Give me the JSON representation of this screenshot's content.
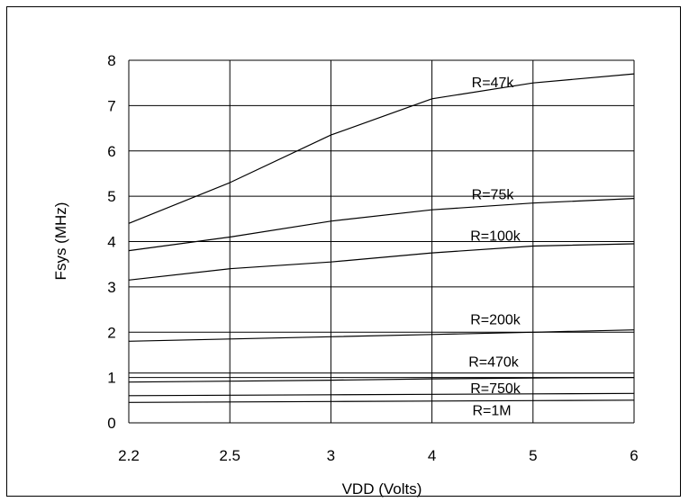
{
  "chart_data": {
    "type": "line",
    "title": "",
    "xlabel": "VDD (Volts)",
    "ylabel": "Fsys (MHz)",
    "x": [
      "2.2",
      "2.5",
      "3",
      "4",
      "5",
      "6"
    ],
    "ylim": [
      0,
      8
    ],
    "yticks": [
      "0",
      "1",
      "2",
      "3",
      "4",
      "5",
      "6",
      "7",
      "8"
    ],
    "grid": true,
    "series": [
      {
        "name": "R=47k",
        "values": [
          4.4,
          5.3,
          6.35,
          7.15,
          7.5,
          7.7
        ]
      },
      {
        "name": "R=75k",
        "values": [
          3.8,
          4.1,
          4.45,
          4.7,
          4.85,
          4.95
        ]
      },
      {
        "name": "R=100k",
        "values": [
          3.15,
          3.4,
          3.55,
          3.75,
          3.9,
          3.95
        ]
      },
      {
        "name": "R=200k",
        "values": [
          1.8,
          1.85,
          1.9,
          1.95,
          2.0,
          2.05
        ]
      },
      {
        "name": "R=470k",
        "values": [
          0.9,
          0.92,
          0.94,
          0.97,
          0.99,
          1.0
        ]
      },
      {
        "name": "R=750k",
        "values": [
          0.6,
          0.61,
          0.62,
          0.63,
          0.64,
          0.65
        ]
      },
      {
        "name": "R=1M",
        "values": [
          0.45,
          0.46,
          0.47,
          0.48,
          0.49,
          0.5
        ]
      }
    ],
    "reference_lines": [
      1.1
    ]
  },
  "colors": {
    "line": "#000000",
    "grid": "#000000",
    "background": "#ffffff"
  }
}
